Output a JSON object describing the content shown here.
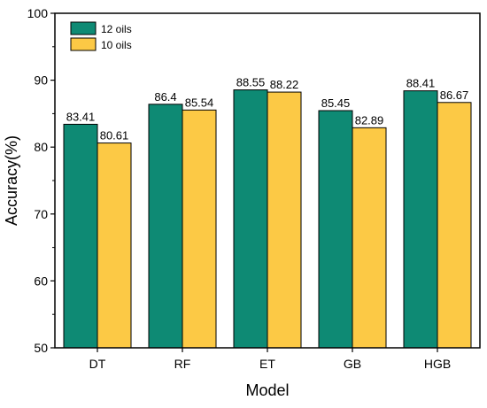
{
  "chart_data": {
    "type": "bar",
    "categories": [
      "DT",
      "RF",
      "ET",
      "GB",
      "HGB"
    ],
    "series": [
      {
        "name": "12 oils",
        "color": "#0e8a74",
        "values": [
          83.41,
          86.4,
          88.55,
          85.45,
          88.41
        ],
        "labels": [
          "83.41",
          "86.4",
          "88.55",
          "85.45",
          "88.41"
        ]
      },
      {
        "name": "10 oils",
        "color": "#fcc945",
        "values": [
          80.61,
          85.54,
          88.22,
          82.89,
          86.67
        ],
        "labels": [
          "80.61",
          "85.54",
          "88.22",
          "82.89",
          "86.67"
        ]
      }
    ],
    "title": "",
    "xlabel": "Model",
    "ylabel": "Accuracy(%)",
    "ylim": [
      50,
      100
    ],
    "yticks": [
      50,
      60,
      70,
      80,
      90,
      100
    ],
    "grid": false,
    "legend_position": "top-left"
  }
}
